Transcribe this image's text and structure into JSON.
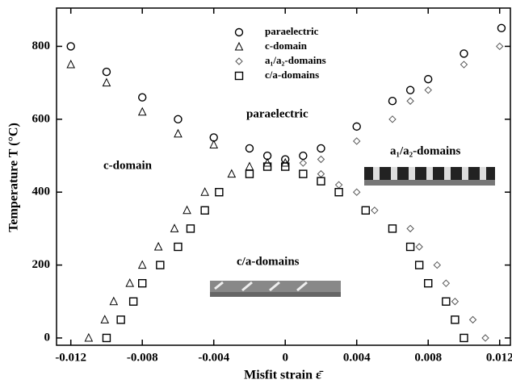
{
  "chart_data": {
    "type": "scatter",
    "x_label": "Misfit strain ε̄",
    "y_label": "Temperature T (°C)",
    "xlim": [
      -0.0128,
      0.0126
    ],
    "ylim": [
      -20,
      905
    ],
    "xticks": [
      -0.012,
      -0.008,
      -0.004,
      0,
      0.004,
      0.008,
      0.012
    ],
    "yticks": [
      0,
      200,
      400,
      600,
      800
    ],
    "legend": "top-center",
    "annotations": [
      "paraelectric",
      "c-domain",
      "a₁/a₂-domains",
      "c/a-domains"
    ],
    "series": [
      {
        "name": "paraelectric",
        "marker": "circle",
        "color": "#000000",
        "x": [
          -0.012,
          -0.01,
          -0.008,
          -0.006,
          -0.004,
          -0.002,
          -0.001,
          0,
          0.001,
          0.002,
          0.004,
          0.006,
          0.007,
          0.008,
          0.01,
          0.0121
        ],
        "values": [
          800,
          730,
          660,
          600,
          550,
          520,
          500,
          490,
          500,
          520,
          580,
          650,
          680,
          710,
          780,
          850
        ]
      },
      {
        "name": "c-domain",
        "marker": "triangle",
        "color": "#000000",
        "x": [
          -0.012,
          -0.01,
          -0.008,
          -0.006,
          -0.004,
          -0.011,
          -0.0101,
          -0.0096,
          -0.0087,
          -0.008,
          -0.0071,
          -0.0062,
          -0.0055,
          -0.0045,
          -0.003,
          -0.002,
          -0.001,
          0
        ],
        "values": [
          750,
          700,
          620,
          560,
          530,
          0,
          50,
          100,
          150,
          200,
          250,
          300,
          350,
          400,
          450,
          470,
          480,
          480
        ]
      },
      {
        "name": "a₁/a₂-domains",
        "marker": "diamond",
        "color": "#555555",
        "x": [
          0.001,
          0.002,
          0.002,
          0.003,
          0.004,
          0.004,
          0.005,
          0.006,
          0.007,
          0.007,
          0.0075,
          0.008,
          0.0085,
          0.009,
          0.0095,
          0.01,
          0.0105,
          0.0112,
          0.012
        ],
        "values": [
          480,
          490,
          450,
          420,
          400,
          540,
          350,
          600,
          650,
          300,
          250,
          680,
          200,
          150,
          100,
          750,
          50,
          0,
          800
        ]
      },
      {
        "name": "c/a-domains",
        "marker": "square",
        "color": "#000000",
        "x": [
          -0.01,
          -0.0092,
          -0.0085,
          -0.008,
          -0.007,
          -0.006,
          -0.0053,
          -0.0045,
          -0.0037,
          -0.002,
          -0.001,
          0,
          0.001,
          0.002,
          0.003,
          0.0045,
          0.006,
          0.007,
          0.0075,
          0.008,
          0.009,
          0.0095,
          0.01
        ],
        "values": [
          0,
          50,
          100,
          150,
          200,
          250,
          300,
          350,
          400,
          450,
          470,
          470,
          450,
          430,
          400,
          350,
          300,
          250,
          200,
          150,
          100,
          50,
          0
        ]
      }
    ]
  }
}
